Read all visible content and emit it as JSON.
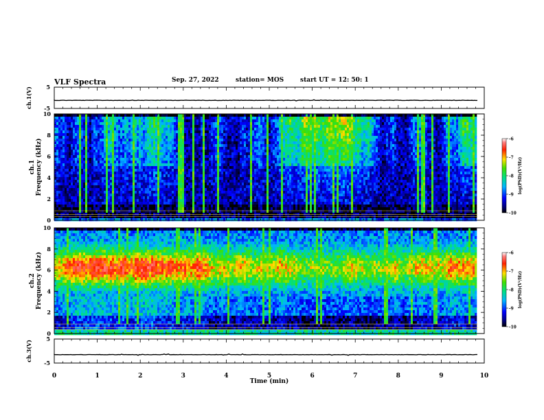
{
  "header": {
    "title": "VLF Spectra",
    "date": "Sep. 27, 2022",
    "station": "station= MOS",
    "start": "start  UT  =   12: 50: 1"
  },
  "colorbar": {
    "label": "log(PSD)(V²/Hz)",
    "ticks": [
      "-6",
      "-7",
      "-8",
      "-9",
      "-10"
    ]
  },
  "chart_data": [
    {
      "type": "line",
      "panel": "ch.1 waveform",
      "ylabel": "ch.1(V)",
      "ylim": [
        -5,
        5
      ],
      "yticks": [
        5,
        -5
      ],
      "xlim": [
        0,
        9.85
      ],
      "series": [
        {
          "values_description_free": true,
          "x": [
            0,
            9.85
          ],
          "y": [
            -1.2,
            -1.2
          ]
        }
      ]
    },
    {
      "type": "heatmap",
      "panel": "ch.1 spectrogram",
      "ylabel": "ch.1\nFrequency (kHz)",
      "ylim": [
        0,
        10
      ],
      "yticks": [
        0,
        2,
        4,
        6,
        8,
        10
      ],
      "xlim": [
        0,
        9.85
      ],
      "color_scale": "log(PSD)(V²/Hz)",
      "clim": [
        -10,
        -6
      ]
    },
    {
      "type": "heatmap",
      "panel": "ch.2 spectrogram",
      "ylabel": "ch.2\nFrequency (kHz)",
      "ylim": [
        0,
        10
      ],
      "yticks": [
        0,
        2,
        4,
        6,
        8,
        10
      ],
      "xlim": [
        0,
        9.85
      ],
      "color_scale": "log(PSD)(V²/Hz)",
      "clim": [
        -10,
        -6
      ]
    },
    {
      "type": "line",
      "panel": "ch.3 waveform",
      "ylabel": "ch.3(V)",
      "ylim": [
        -5,
        5
      ],
      "yticks": [
        5,
        -5
      ],
      "xlim": [
        0,
        9.85
      ],
      "series": [
        {
          "x": [
            0,
            9.85
          ],
          "y": [
            -1.5,
            -1.5
          ]
        }
      ]
    }
  ],
  "xaxis": {
    "label": "Time  (min)",
    "ticks": [
      "0",
      "1",
      "2",
      "3",
      "4",
      "5",
      "6",
      "7",
      "8",
      "9",
      "10"
    ],
    "range": [
      0,
      10
    ]
  }
}
